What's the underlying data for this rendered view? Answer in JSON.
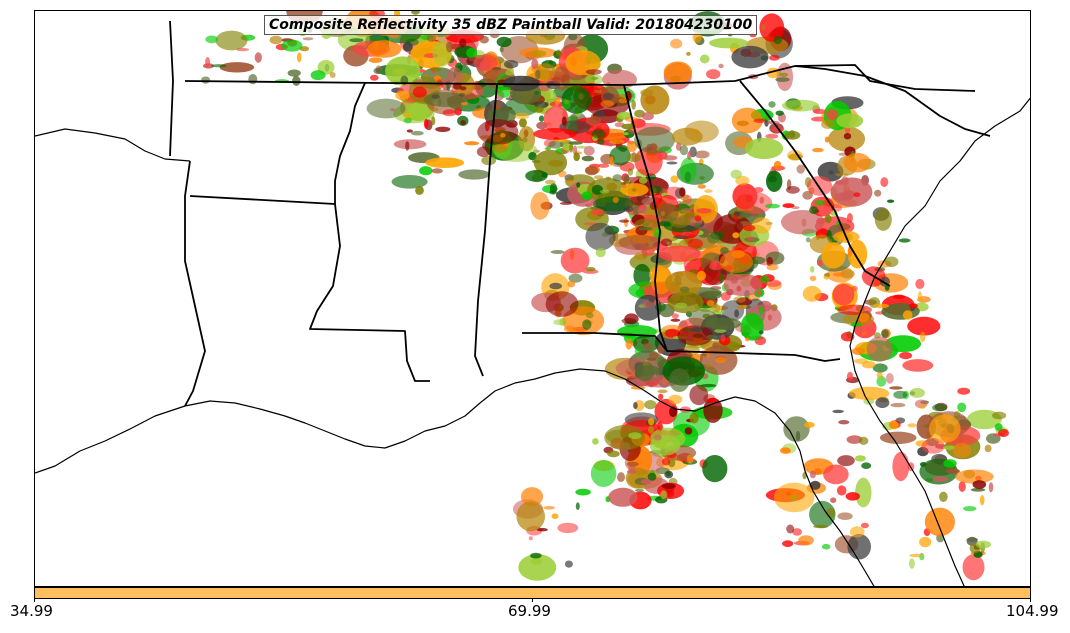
{
  "title": "Composite Reflectivity 35 dBZ Paintball Valid: 201804230100",
  "colorbar": {
    "color": "#FFBF5F",
    "ticks": [
      "34.99",
      "69.99",
      "104.99"
    ],
    "range": [
      34.99,
      104.99
    ]
  },
  "map": {
    "region": "southeastern-united-states",
    "boundary_color": "#000000",
    "background": "#ffffff",
    "member_colors": [
      "#FF0000",
      "#FF8000",
      "#00CC00",
      "#006400",
      "#556B2F",
      "#808000",
      "#8B0000",
      "#404040",
      "#FFA500",
      "#FF4040",
      "#9ACD32",
      "#A0522D",
      "#B8860B",
      "#CD5C5C"
    ]
  }
}
